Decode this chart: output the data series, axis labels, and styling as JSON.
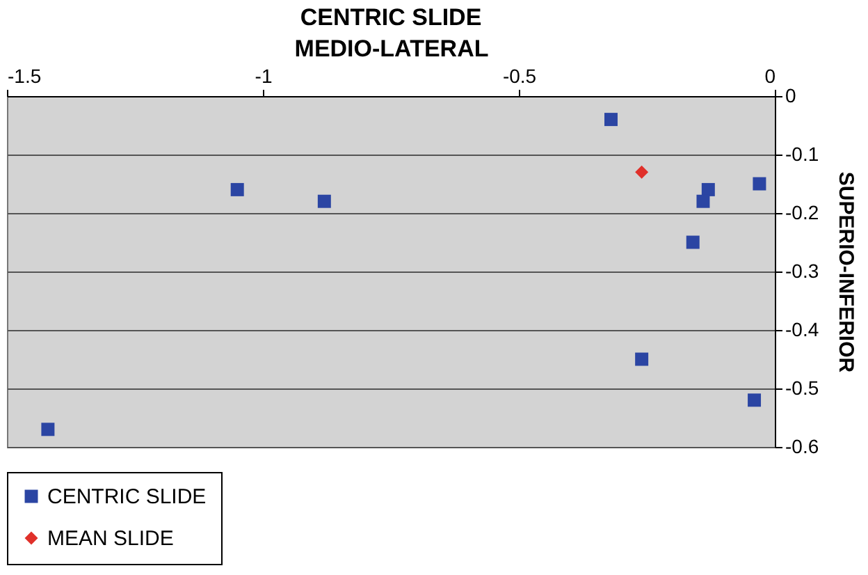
{
  "chart_data": {
    "type": "scatter",
    "title": "CENTRIC SLIDE",
    "xlabel": "MEDIO-LATERAL",
    "ylabel": "SUPERIO-INFERIOR",
    "series": [
      {
        "name": "CENTRIC SLIDE",
        "color": "#2b45a3",
        "marker": "square",
        "x": [
          -1.42,
          -1.05,
          -0.88,
          -0.32,
          -0.13,
          -0.14,
          -0.03,
          -0.16,
          -0.26,
          -0.04
        ],
        "values": [
          -0.57,
          -0.16,
          -0.18,
          -0.04,
          -0.16,
          -0.18,
          -0.15,
          -0.25,
          -0.45,
          -0.52
        ]
      },
      {
        "name": "MEAN SLIDE",
        "color": "#e0302a",
        "marker": "diamond",
        "x": [
          -0.26
        ],
        "values": [
          -0.13
        ]
      }
    ],
    "xlim": [
      -1.5,
      0
    ],
    "xticks": [
      -1.5,
      -1,
      -0.5,
      0
    ],
    "ylim": [
      -0.6,
      0
    ],
    "yticks": [
      0,
      -0.1,
      -0.2,
      -0.3,
      -0.4,
      -0.5,
      -0.6
    ],
    "grid": "y",
    "legend": "bottom"
  }
}
